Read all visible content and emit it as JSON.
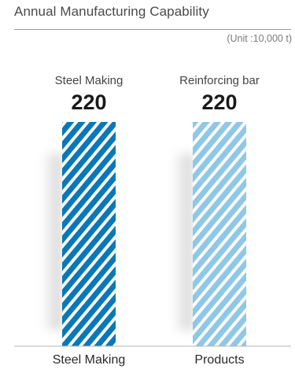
{
  "header": {
    "title": "Annual Manufacturing Capability",
    "unit": "(Unit :10,000 t)"
  },
  "chart_data": {
    "type": "bar",
    "title": "Annual Manufacturing Capability",
    "unit": "(Unit :10,000 t)",
    "categories": [
      "Steel Making",
      "Products"
    ],
    "series": [
      {
        "values": [
          220,
          220
        ]
      }
    ],
    "bar_labels": [
      "Steel Making",
      "Reinforcing bar"
    ],
    "data_labels": [
      "220",
      "220"
    ],
    "ylim": [
      0,
      220
    ],
    "grid": false,
    "colors": [
      "#0a78b8",
      "#8ec8e6"
    ]
  }
}
